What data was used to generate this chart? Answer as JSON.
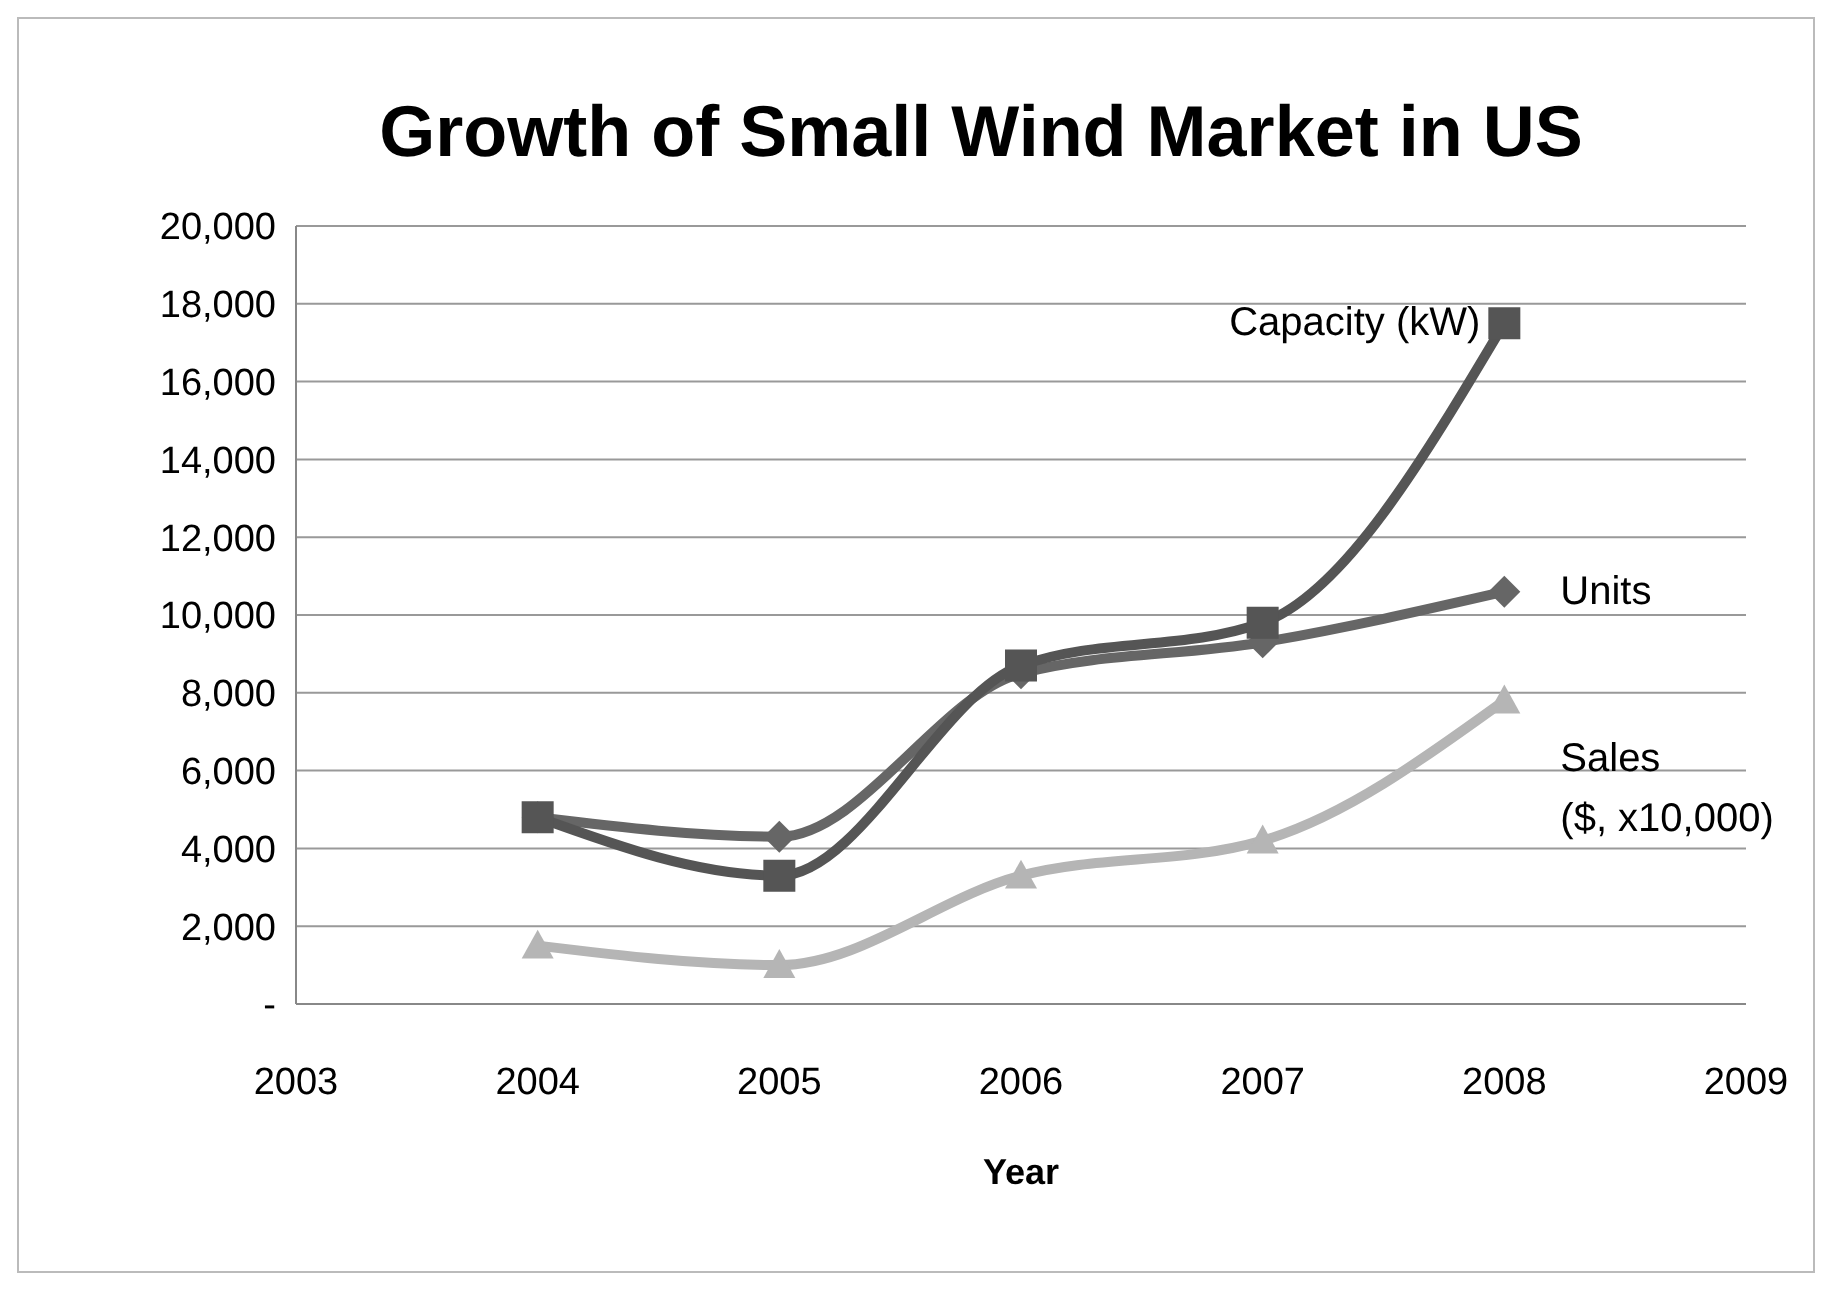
{
  "chart_data": {
    "type": "line",
    "title": "Growth of Small Wind Market in US",
    "xlabel": "Year",
    "x": [
      2004,
      2005,
      2006,
      2007,
      2008
    ],
    "series": [
      {
        "name": "Capacity (kW)",
        "color": "#555555",
        "marker": "square",
        "values": [
          4800,
          3300,
          8700,
          9800,
          17500
        ]
      },
      {
        "name": "Units",
        "color": "#666666",
        "marker": "diamond",
        "values": [
          4800,
          4300,
          8500,
          9300,
          10600
        ]
      },
      {
        "name": "Sales ($, x10,000)",
        "color": "#b5b5b5",
        "marker": "triangle",
        "values": [
          1500,
          1000,
          3300,
          4200,
          7800
        ]
      }
    ],
    "xlim": [
      2003,
      2009
    ],
    "xticks": [
      2003,
      2004,
      2005,
      2006,
      2007,
      2008,
      2009
    ],
    "ylim": [
      0,
      20000
    ],
    "yticks": [
      {
        "value": 0,
        "label": "-"
      },
      {
        "value": 2000,
        "label": "2,000"
      },
      {
        "value": 4000,
        "label": "4,000"
      },
      {
        "value": 6000,
        "label": "6,000"
      },
      {
        "value": 8000,
        "label": "8,000"
      },
      {
        "value": 10000,
        "label": "10,000"
      },
      {
        "value": 12000,
        "label": "12,000"
      },
      {
        "value": 14000,
        "label": "14,000"
      },
      {
        "value": 16000,
        "label": "16,000"
      },
      {
        "value": 18000,
        "label": "18,000"
      },
      {
        "value": 20000,
        "label": "20,000"
      }
    ],
    "grid": "y"
  }
}
